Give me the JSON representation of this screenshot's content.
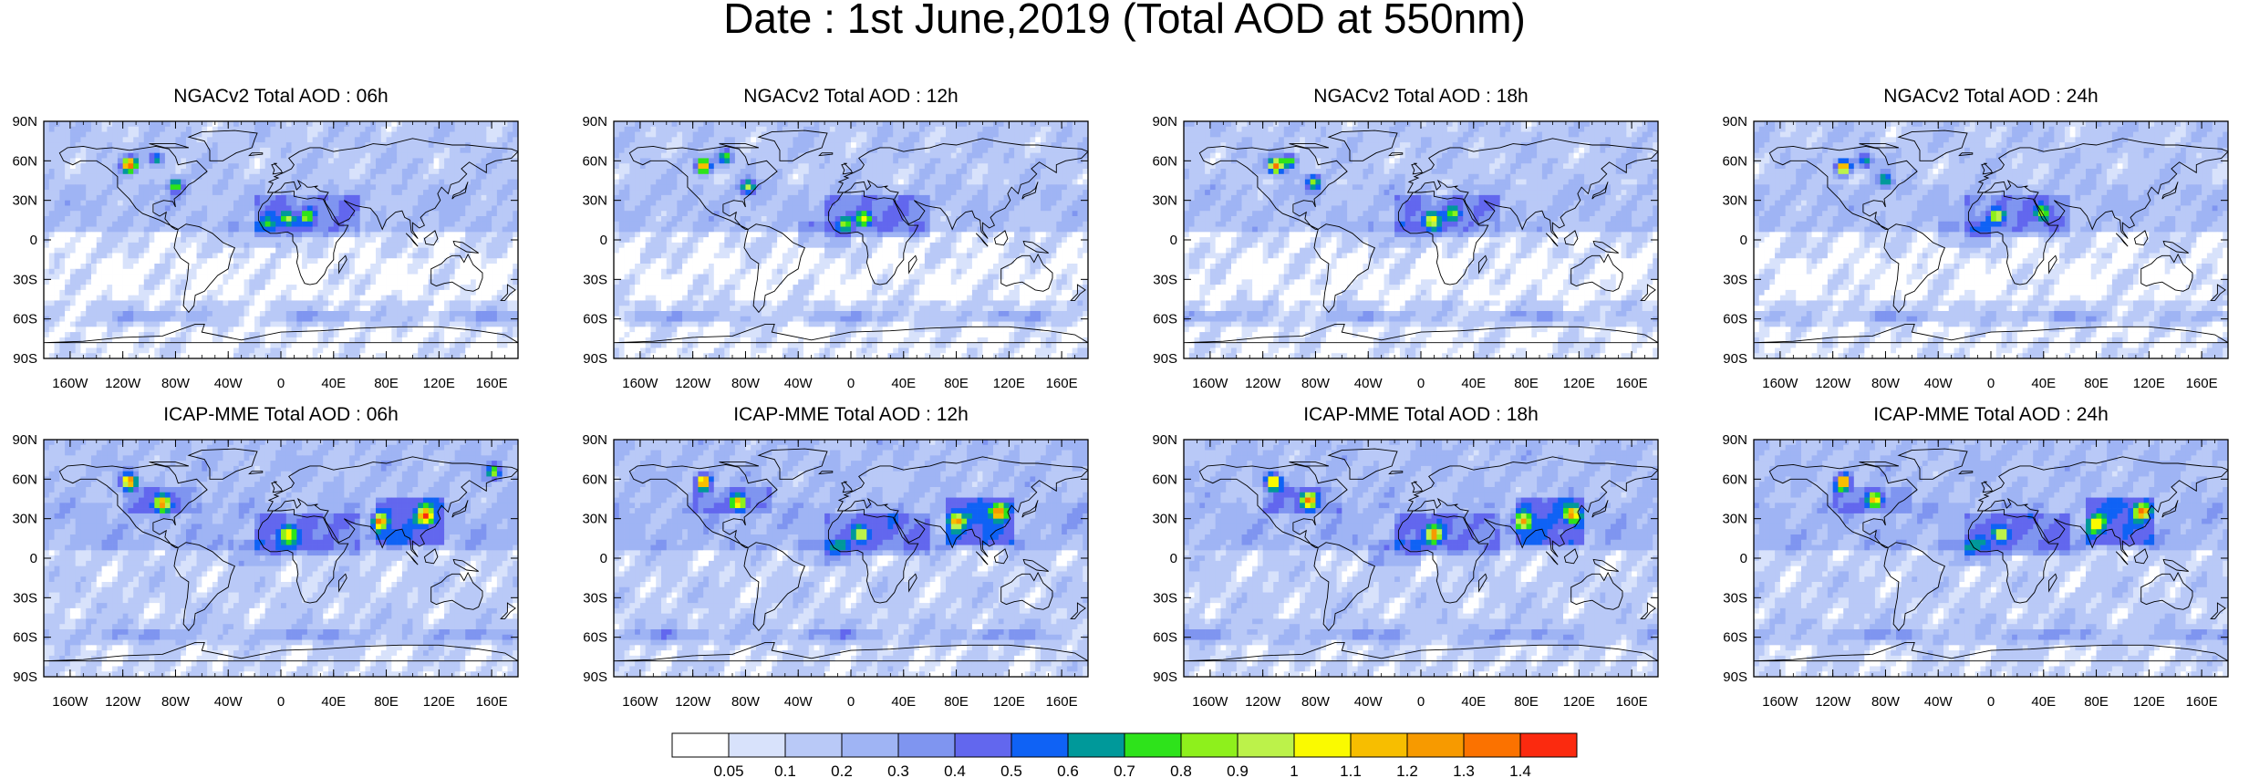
{
  "title": "Date : 1st June,2019 (Total AOD at 550nm)",
  "chart_data": [
    {
      "type": "heatmap",
      "title": "NGACv2 Total AOD : 06h",
      "x_ticks": [
        "160W",
        "120W",
        "80W",
        "40W",
        "0",
        "40E",
        "80E",
        "120E",
        "160E"
      ],
      "y_ticks": [
        "90N",
        "60N",
        "30N",
        "0",
        "30S",
        "60S",
        "90S"
      ],
      "xlim": [
        -180,
        180
      ],
      "ylim": [
        -90,
        90
      ],
      "hotspots": [
        {
          "lon": -115,
          "lat": 57,
          "aod": 1.4
        },
        {
          "lon": -95,
          "lat": 62,
          "aod": 0.8
        },
        {
          "lon": -80,
          "lat": 42,
          "aod": 0.9
        },
        {
          "lon": 5,
          "lat": 16,
          "aod": 0.8
        },
        {
          "lon": -10,
          "lat": 14,
          "aod": 0.5
        },
        {
          "lon": 20,
          "lat": 18,
          "aod": 0.7
        }
      ]
    },
    {
      "type": "heatmap",
      "title": "NGACv2 Total AOD : 12h",
      "x_ticks": [
        "160W",
        "120W",
        "80W",
        "40W",
        "0",
        "40E",
        "80E",
        "120E",
        "160E"
      ],
      "y_ticks": [
        "90N",
        "60N",
        "30N",
        "0",
        "30S",
        "60S",
        "90S"
      ],
      "xlim": [
        -180,
        180
      ],
      "ylim": [
        -90,
        90
      ],
      "hotspots": [
        {
          "lon": -112,
          "lat": 56,
          "aod": 1.4
        },
        {
          "lon": -95,
          "lat": 62,
          "aod": 0.8
        },
        {
          "lon": -78,
          "lat": 40,
          "aod": 0.9
        },
        {
          "lon": 10,
          "lat": 16,
          "aod": 0.9
        },
        {
          "lon": -5,
          "lat": 14,
          "aod": 0.6
        }
      ]
    },
    {
      "type": "heatmap",
      "title": "NGACv2 Total AOD : 18h",
      "x_ticks": [
        "160W",
        "120W",
        "80W",
        "40W",
        "0",
        "40E",
        "80E",
        "120E",
        "160E"
      ],
      "y_ticks": [
        "90N",
        "60N",
        "30N",
        "0",
        "30S",
        "60S",
        "90S"
      ],
      "xlim": [
        -180,
        180
      ],
      "ylim": [
        -90,
        90
      ],
      "hotspots": [
        {
          "lon": -110,
          "lat": 56,
          "aod": 1.4
        },
        {
          "lon": -100,
          "lat": 60,
          "aod": 0.9
        },
        {
          "lon": -82,
          "lat": 44,
          "aod": 0.9
        },
        {
          "lon": 8,
          "lat": 15,
          "aod": 0.9
        },
        {
          "lon": 25,
          "lat": 20,
          "aod": 0.7
        }
      ]
    },
    {
      "type": "heatmap",
      "title": "NGACv2 Total AOD : 24h",
      "x_ticks": [
        "160W",
        "120W",
        "80W",
        "40W",
        "0",
        "40E",
        "80E",
        "120E",
        "160E"
      ],
      "y_ticks": [
        "90N",
        "60N",
        "30N",
        "0",
        "30S",
        "60S",
        "90S"
      ],
      "xlim": [
        -180,
        180
      ],
      "ylim": [
        -90,
        90
      ],
      "hotspots": [
        {
          "lon": -112,
          "lat": 55,
          "aod": 1.4
        },
        {
          "lon": -95,
          "lat": 60,
          "aod": 0.8
        },
        {
          "lon": -80,
          "lat": 45,
          "aod": 0.8
        },
        {
          "lon": 5,
          "lat": 18,
          "aod": 0.9
        },
        {
          "lon": 40,
          "lat": 20,
          "aod": 0.7
        }
      ]
    },
    {
      "type": "heatmap",
      "title": "ICAP-MME Total AOD : 06h",
      "x_ticks": [
        "160W",
        "120W",
        "80W",
        "40W",
        "0",
        "40E",
        "80E",
        "120E",
        "160E"
      ],
      "y_ticks": [
        "90N",
        "60N",
        "30N",
        "0",
        "30S",
        "60S",
        "90S"
      ],
      "xlim": [
        -180,
        180
      ],
      "ylim": [
        -90,
        90
      ],
      "hotspots": [
        {
          "lon": -115,
          "lat": 58,
          "aod": 1.4
        },
        {
          "lon": -90,
          "lat": 42,
          "aod": 1.1
        },
        {
          "lon": 5,
          "lat": 18,
          "aod": 0.9
        },
        {
          "lon": 75,
          "lat": 28,
          "aod": 1.0
        },
        {
          "lon": 110,
          "lat": 32,
          "aod": 1.2
        },
        {
          "lon": 162,
          "lat": 65,
          "aod": 0.8
        }
      ]
    },
    {
      "type": "heatmap",
      "title": "ICAP-MME Total AOD : 12h",
      "x_ticks": [
        "160W",
        "120W",
        "80W",
        "40W",
        "0",
        "40E",
        "80E",
        "120E",
        "160E"
      ],
      "y_ticks": [
        "90N",
        "60N",
        "30N",
        "0",
        "30S",
        "60S",
        "90S"
      ],
      "xlim": [
        -180,
        180
      ],
      "ylim": [
        -90,
        90
      ],
      "hotspots": [
        {
          "lon": -112,
          "lat": 58,
          "aod": 1.4
        },
        {
          "lon": -85,
          "lat": 42,
          "aod": 1.1
        },
        {
          "lon": 8,
          "lat": 18,
          "aod": 0.9
        },
        {
          "lon": 80,
          "lat": 28,
          "aod": 1.0
        },
        {
          "lon": 112,
          "lat": 35,
          "aod": 1.1
        }
      ]
    },
    {
      "type": "heatmap",
      "title": "ICAP-MME Total AOD : 18h",
      "x_ticks": [
        "160W",
        "120W",
        "80W",
        "40W",
        "0",
        "40E",
        "80E",
        "120E",
        "160E"
      ],
      "y_ticks": [
        "90N",
        "60N",
        "30N",
        "0",
        "30S",
        "60S",
        "90S"
      ],
      "xlim": [
        -180,
        180
      ],
      "ylim": [
        -90,
        90
      ],
      "hotspots": [
        {
          "lon": -112,
          "lat": 58,
          "aod": 1.4
        },
        {
          "lon": -85,
          "lat": 44,
          "aod": 1.2
        },
        {
          "lon": 10,
          "lat": 18,
          "aod": 1.0
        },
        {
          "lon": 78,
          "lat": 28,
          "aod": 0.9
        },
        {
          "lon": 115,
          "lat": 33,
          "aod": 1.1
        }
      ]
    },
    {
      "type": "heatmap",
      "title": "ICAP-MME Total AOD : 24h",
      "x_ticks": [
        "160W",
        "120W",
        "80W",
        "40W",
        "0",
        "40E",
        "80E",
        "120E",
        "160E"
      ],
      "y_ticks": [
        "90N",
        "60N",
        "30N",
        "0",
        "30S",
        "60S",
        "90S"
      ],
      "xlim": [
        -180,
        180
      ],
      "ylim": [
        -90,
        90
      ],
      "hotspots": [
        {
          "lon": -112,
          "lat": 58,
          "aod": 1.4
        },
        {
          "lon": -88,
          "lat": 44,
          "aod": 1.1
        },
        {
          "lon": 8,
          "lat": 18,
          "aod": 0.9
        },
        {
          "lon": 80,
          "lat": 26,
          "aod": 0.9
        },
        {
          "lon": 115,
          "lat": 35,
          "aod": 1.1
        }
      ]
    }
  ],
  "colorbar": {
    "labels": [
      "0.05",
      "0.1",
      "0.2",
      "0.3",
      "0.4",
      "0.5",
      "0.6",
      "0.7",
      "0.8",
      "0.9",
      "1",
      "1.1",
      "1.2",
      "1.3",
      "1.4"
    ],
    "colors": [
      "#ffffff",
      "#d8e2fb",
      "#b9c9f7",
      "#9fb4f4",
      "#7f95f0",
      "#6267ee",
      "#0f62f5",
      "#00999a",
      "#2ee31b",
      "#8ef01c",
      "#bcf24a",
      "#fafa00",
      "#f7be00",
      "#f79a00",
      "#fb7200",
      "#fb2a0f"
    ]
  }
}
